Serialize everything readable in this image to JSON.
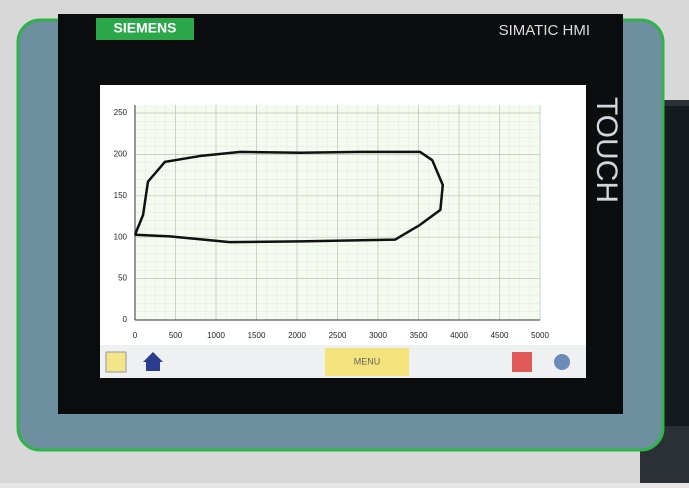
{
  "header": {
    "brand": "SIEMENS",
    "model": "SIMATIC HMI",
    "side_label": "TOUCH"
  },
  "toolbar": {
    "menu_button": "MENU"
  },
  "chart_data": {
    "type": "line",
    "x": [
      0,
      100,
      160,
      370,
      800,
      1300,
      2040,
      2780,
      3520,
      3670,
      3800,
      3770,
      3520,
      3210,
      2040,
      1170,
      430,
      0
    ],
    "series": [
      {
        "color": "#111111",
        "values": [
          103,
          127,
          167,
          191,
          198,
          203,
          202,
          203,
          203,
          193,
          163,
          133,
          115,
          97,
          95,
          94,
          101,
          103
        ]
      }
    ],
    "xlim": [
      0,
      5000
    ],
    "xticks": [
      0,
      500,
      1000,
      1500,
      2000,
      2500,
      3000,
      3500,
      4000,
      4500,
      5000
    ],
    "ylim": [
      0,
      250
    ],
    "yticks": [
      0,
      50,
      100,
      150,
      200,
      250
    ],
    "grid": true
  }
}
